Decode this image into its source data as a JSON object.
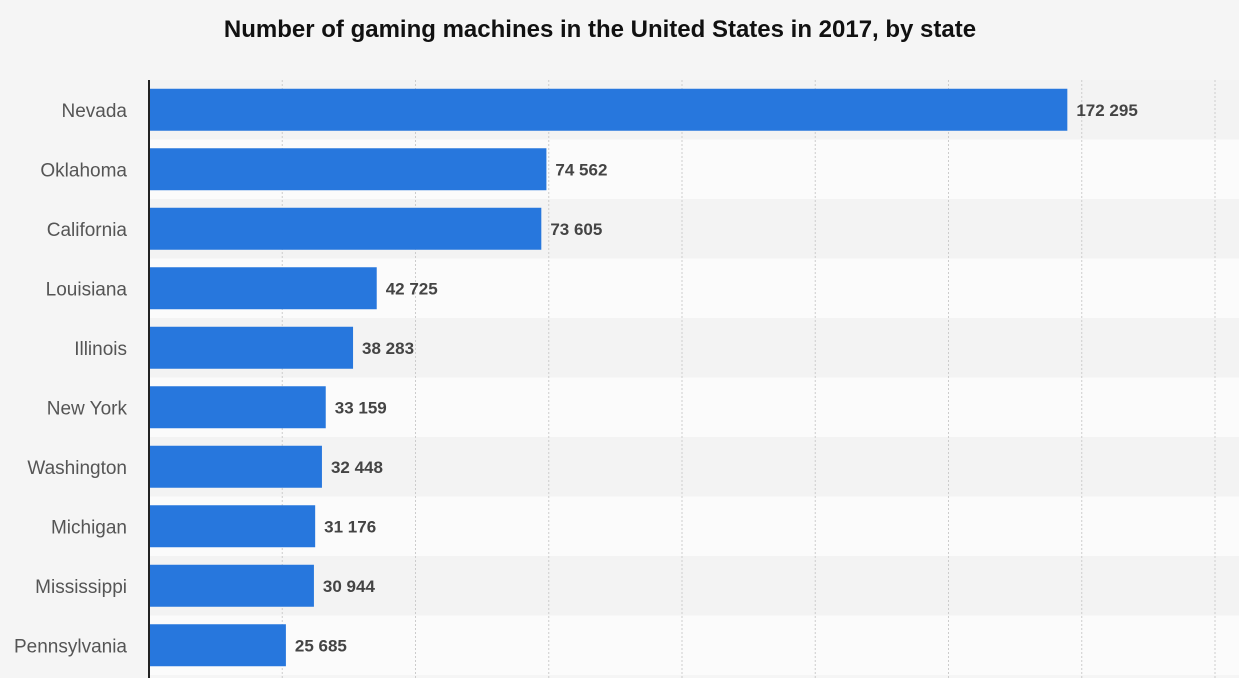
{
  "colors": {
    "bar": "#2777dd",
    "axis": "#222222",
    "grid": "#cccccc",
    "row_alt": "#f3f3f3",
    "row_base": "#fbfbfb"
  },
  "chart_data": {
    "type": "bar",
    "orientation": "horizontal",
    "title": "Number of gaming machines in the United States in 2017, by state",
    "xlabel": "",
    "ylabel": "",
    "xlim": [
      0,
      200000
    ],
    "grid": true,
    "categories": [
      "Nevada",
      "Oklahoma",
      "California",
      "Louisiana",
      "Illinois",
      "New York",
      "Washington",
      "Michigan",
      "Mississippi",
      "Pennsylvania"
    ],
    "values": [
      172295,
      74562,
      73605,
      42725,
      38283,
      33159,
      32448,
      31176,
      30944,
      25685
    ],
    "value_labels": [
      "172 295",
      "74 562",
      "73 605",
      "42 725",
      "38 283",
      "33 159",
      "32 448",
      "31 176",
      "30 944",
      "25 685"
    ]
  }
}
